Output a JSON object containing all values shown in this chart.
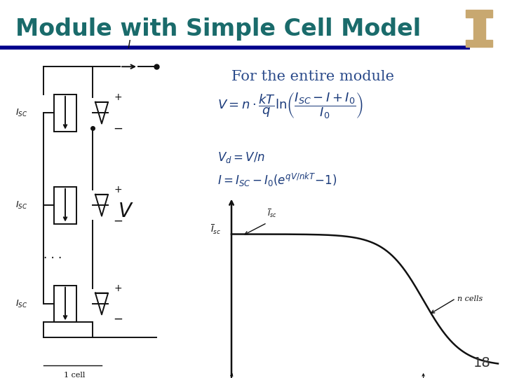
{
  "title": "Module with Simple Cell Model",
  "title_color": "#1a6b6b",
  "title_fontsize": 24,
  "rule_color": "#00008B",
  "background_color": "#ffffff",
  "subtitle_text": "For the entire module",
  "subtitle_color": "#2a4a8a",
  "subtitle_fontsize": 15,
  "page_number": "18",
  "page_number_color": "#333333",
  "page_number_fontsize": 14,
  "logo_bg": "#5a3e2b",
  "logo_col": "#c8a870",
  "eq1_color": "#1a3a7a",
  "eq1_fontsize": 12,
  "circuit_lw": 1.4,
  "circuit_color": "#111111",
  "iv_lw": 1.8,
  "iv_color": "#111111"
}
